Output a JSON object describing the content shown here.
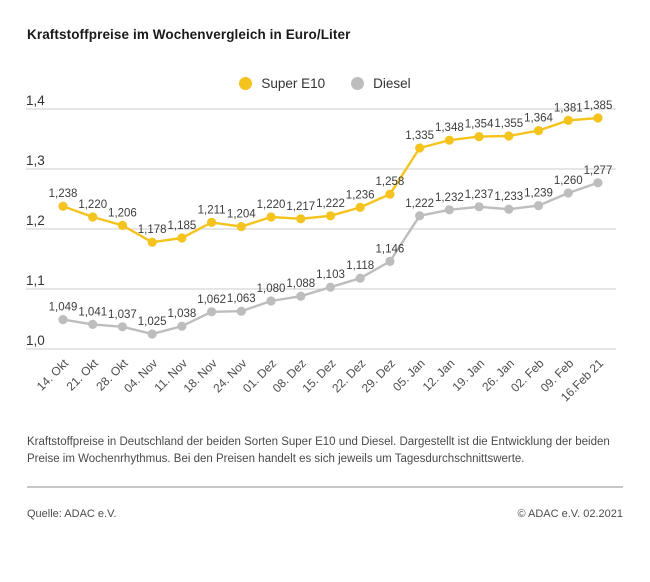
{
  "header": {
    "title": "Kraftstoffpreise im Wochenvergleich in Euro/Liter"
  },
  "chart_data": {
    "type": "line",
    "title": "Kraftstoffpreise im Wochenvergleich in Euro/Liter",
    "categories": [
      "14. Okt",
      "21. Okt",
      "28. Okt",
      "04. Nov",
      "11. Nov",
      "18. Nov",
      "24. Nov",
      "01. Dez",
      "08. Dez",
      "15. Dez",
      "22. Dez",
      "29. Dez",
      "05. Jan",
      "12. Jan",
      "19. Jan",
      "26. Jan",
      "02. Feb",
      "09. Feb",
      "16.Feb 21"
    ],
    "series": [
      {
        "name": "Super E10",
        "color": "#F5C31E",
        "values": [
          1.238,
          1.22,
          1.206,
          1.178,
          1.185,
          1.211,
          1.204,
          1.22,
          1.217,
          1.222,
          1.236,
          1.258,
          1.335,
          1.348,
          1.354,
          1.355,
          1.364,
          1.381,
          1.385
        ]
      },
      {
        "name": "Diesel",
        "color": "#BDBDBD",
        "values": [
          1.049,
          1.041,
          1.037,
          1.025,
          1.038,
          1.062,
          1.063,
          1.08,
          1.088,
          1.103,
          1.118,
          1.146,
          1.222,
          1.232,
          1.237,
          1.233,
          1.239,
          1.26,
          1.277
        ]
      }
    ],
    "ylim": [
      1.0,
      1.4
    ],
    "yticks": [
      1.0,
      1.1,
      1.2,
      1.3,
      1.4
    ],
    "ytick_labels": [
      "1,0",
      "1,1",
      "1,2",
      "1,3",
      "1,4"
    ],
    "grid": "horizontal",
    "legend_position": "top-center",
    "value_labels": "decimal-comma, 3 places, above each point",
    "gridline_color": "#cccccc"
  },
  "description": "Kraftstoffpreise in Deutschland der beiden Sorten Super E10 und Diesel. Dargestellt ist die Entwicklung der beiden Preise im Wochenrhythmus. Bei den Preisen handelt es sich jeweils um Tagesdurchschnittswerte.",
  "footer": {
    "source": "Quelle: ADAC e.V.",
    "copyright": "© ADAC e.V. 02.2021"
  }
}
